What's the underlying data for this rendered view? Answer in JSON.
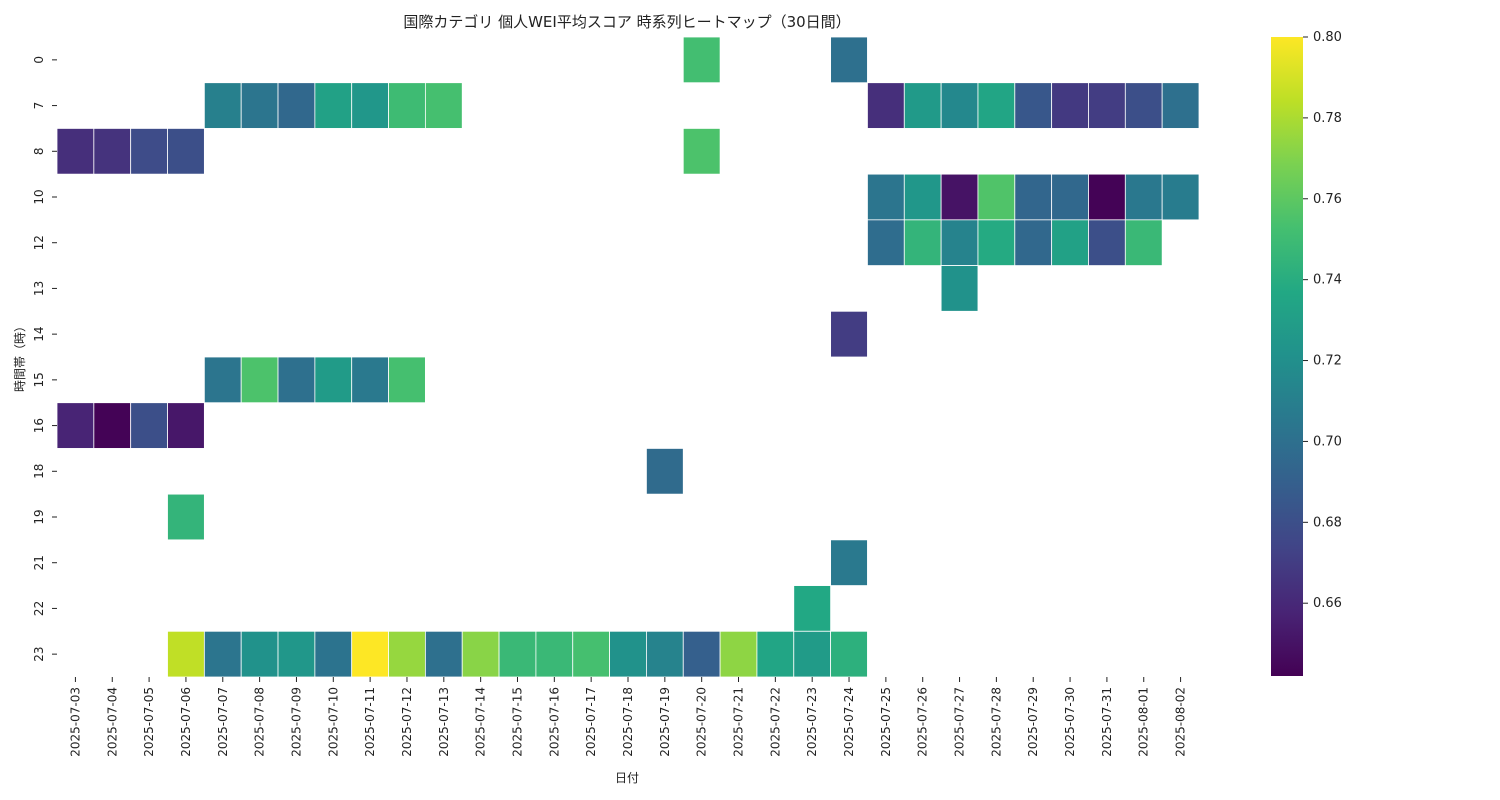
{
  "chart_data": {
    "type": "heatmap",
    "title": "国際カテゴリ 個人WEI平均スコア 時系列ヒートマップ（30日間）",
    "xlabel": "日付",
    "ylabel": "時間帯（時）",
    "x_categories": [
      "2025-07-03",
      "2025-07-04",
      "2025-07-05",
      "2025-07-06",
      "2025-07-07",
      "2025-07-08",
      "2025-07-09",
      "2025-07-10",
      "2025-07-11",
      "2025-07-12",
      "2025-07-13",
      "2025-07-14",
      "2025-07-15",
      "2025-07-16",
      "2025-07-17",
      "2025-07-18",
      "2025-07-19",
      "2025-07-20",
      "2025-07-21",
      "2025-07-22",
      "2025-07-23",
      "2025-07-24",
      "2025-07-25",
      "2025-07-26",
      "2025-07-27",
      "2025-07-28",
      "2025-07-29",
      "2025-07-30",
      "2025-07-31",
      "2025-08-01",
      "2025-08-02"
    ],
    "y_categories": [
      "0",
      "7",
      "8",
      "10",
      "12",
      "13",
      "14",
      "15",
      "16",
      "18",
      "19",
      "21",
      "22",
      "23"
    ],
    "values": [
      [
        null,
        null,
        null,
        null,
        null,
        null,
        null,
        null,
        null,
        null,
        null,
        null,
        null,
        null,
        null,
        null,
        null,
        0.752,
        null,
        null,
        null,
        0.7,
        null,
        null,
        null,
        null,
        null,
        null,
        null,
        null,
        null
      ],
      [
        null,
        null,
        null,
        null,
        0.71,
        0.703,
        0.695,
        0.732,
        0.725,
        0.75,
        0.753,
        null,
        null,
        null,
        null,
        null,
        null,
        null,
        null,
        null,
        null,
        null,
        0.663,
        0.727,
        0.715,
        0.735,
        0.685,
        0.668,
        0.67,
        0.68,
        0.7
      ],
      [
        0.663,
        0.665,
        0.678,
        0.68,
        null,
        null,
        null,
        null,
        null,
        null,
        null,
        null,
        null,
        null,
        null,
        null,
        null,
        0.755,
        null,
        null,
        null,
        null,
        null,
        null,
        null,
        null,
        null,
        null,
        null,
        null,
        null
      ],
      [
        null,
        null,
        null,
        null,
        null,
        null,
        null,
        null,
        null,
        null,
        null,
        null,
        null,
        null,
        null,
        null,
        null,
        null,
        null,
        null,
        null,
        null,
        0.703,
        0.725,
        0.65,
        0.756,
        0.694,
        0.695,
        0.643,
        0.705,
        0.708
      ],
      [
        null,
        null,
        null,
        null,
        null,
        null,
        null,
        null,
        null,
        null,
        null,
        null,
        null,
        null,
        null,
        null,
        null,
        null,
        null,
        null,
        null,
        null,
        0.698,
        0.745,
        0.712,
        0.738,
        0.695,
        0.732,
        0.68,
        0.748,
        null
      ],
      [
        null,
        null,
        null,
        null,
        null,
        null,
        null,
        null,
        null,
        null,
        null,
        null,
        null,
        null,
        null,
        null,
        null,
        null,
        null,
        null,
        null,
        null,
        null,
        null,
        0.722,
        null,
        null,
        null,
        null,
        null,
        null
      ],
      [
        null,
        null,
        null,
        null,
        null,
        null,
        null,
        null,
        null,
        null,
        null,
        null,
        null,
        null,
        null,
        null,
        null,
        null,
        null,
        null,
        null,
        0.67,
        null,
        null,
        null,
        null,
        null,
        null,
        null,
        null,
        null
      ],
      [
        null,
        null,
        null,
        null,
        0.703,
        0.755,
        0.7,
        0.728,
        0.706,
        0.753,
        null,
        null,
        null,
        null,
        null,
        null,
        null,
        null,
        null,
        null,
        null,
        null,
        null,
        null,
        null,
        null,
        null,
        null,
        null,
        null,
        null
      ],
      [
        0.658,
        0.643,
        0.68,
        0.652,
        null,
        null,
        null,
        null,
        null,
        null,
        null,
        null,
        null,
        null,
        null,
        null,
        null,
        null,
        null,
        null,
        null,
        null,
        null,
        null,
        null,
        null,
        null,
        null,
        null,
        null,
        null
      ],
      [
        null,
        null,
        null,
        null,
        null,
        null,
        null,
        null,
        null,
        null,
        null,
        null,
        null,
        null,
        null,
        null,
        0.697,
        null,
        null,
        null,
        null,
        null,
        null,
        null,
        null,
        null,
        null,
        null,
        null,
        null,
        null
      ],
      [
        null,
        null,
        null,
        0.745,
        null,
        null,
        null,
        null,
        null,
        null,
        null,
        null,
        null,
        null,
        null,
        null,
        null,
        null,
        null,
        null,
        null,
        null,
        null,
        null,
        null,
        null,
        null,
        null,
        null,
        null,
        null
      ],
      [
        null,
        null,
        null,
        null,
        null,
        null,
        null,
        null,
        null,
        null,
        null,
        null,
        null,
        null,
        null,
        null,
        null,
        null,
        null,
        null,
        null,
        0.706,
        null,
        null,
        null,
        null,
        null,
        null,
        null,
        null,
        null
      ],
      [
        null,
        null,
        null,
        null,
        null,
        null,
        null,
        null,
        null,
        null,
        null,
        null,
        null,
        null,
        null,
        null,
        null,
        null,
        null,
        null,
        0.737,
        null,
        null,
        null,
        null,
        null,
        null,
        null,
        null,
        null,
        null
      ],
      [
        null,
        null,
        null,
        0.785,
        0.703,
        0.722,
        0.725,
        0.702,
        0.8,
        0.775,
        0.7,
        0.772,
        0.748,
        0.748,
        0.753,
        0.722,
        0.712,
        0.69,
        0.773,
        0.735,
        0.728,
        0.742,
        null,
        null,
        null,
        null,
        null,
        null,
        null,
        null,
        null
      ]
    ],
    "colorbar": {
      "colormap": "viridis",
      "vmin": 0.642,
      "vmax": 0.8,
      "ticks": [
        0.66,
        0.68,
        0.7,
        0.72,
        0.74,
        0.76,
        0.78,
        0.8
      ],
      "tick_labels": [
        "0.66",
        "0.68",
        "0.70",
        "0.72",
        "0.74",
        "0.76",
        "0.78",
        "0.80"
      ]
    },
    "grid": false,
    "legend": "colorbar-right"
  }
}
